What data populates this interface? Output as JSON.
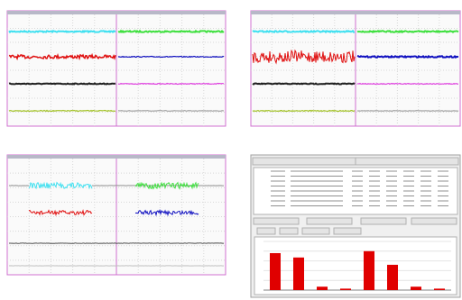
{
  "bar_chart": {
    "type": "bar",
    "values": [
      76,
      67,
      7,
      3,
      80,
      52,
      7,
      3
    ],
    "ylim": [
      0,
      100
    ],
    "color": "#e00000"
  }
}
